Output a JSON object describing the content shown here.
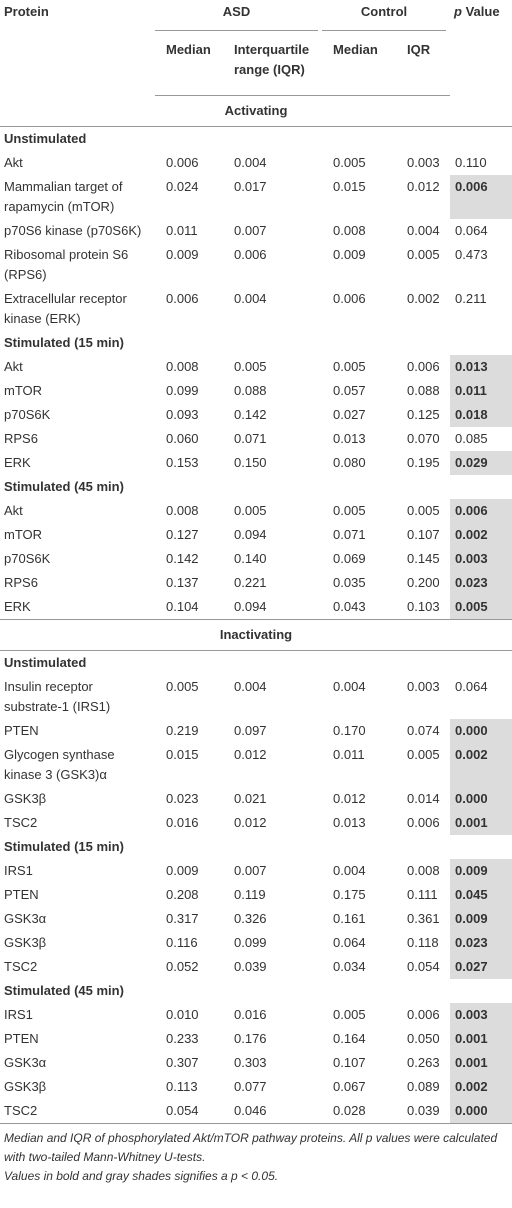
{
  "header": {
    "protein": "Protein",
    "asd": "ASD",
    "control": "Control",
    "p_prefix": "p",
    "p_suffix": "Value",
    "asd_median": "Median",
    "asd_iqr": "Interquartile range (IQR)",
    "control_median": "Median",
    "control_iqr": "IQR"
  },
  "sections": [
    {
      "title": "Activating",
      "groups": [
        {
          "title": "Unstimulated",
          "rows": [
            {
              "cells": [
                "Akt",
                "0.006",
                "0.004",
                "0.005",
                "0.003",
                "0.110"
              ],
              "significant": false
            },
            {
              "cells": [
                "Mammalian target of rapamycin (mTOR)",
                "0.024",
                "0.017",
                "0.015",
                "0.012",
                "0.006"
              ],
              "significant": true
            },
            {
              "cells": [
                "p70S6 kinase (p70S6K)",
                "0.011",
                "0.007",
                "0.008",
                "0.004",
                "0.064"
              ],
              "significant": false
            },
            {
              "cells": [
                "Ribosomal protein S6 (RPS6)",
                "0.009",
                "0.006",
                "0.009",
                "0.005",
                "0.473"
              ],
              "significant": false
            },
            {
              "cells": [
                "Extracellular receptor kinase (ERK)",
                "0.006",
                "0.004",
                "0.006",
                "0.002",
                "0.211"
              ],
              "significant": false
            }
          ]
        },
        {
          "title": "Stimulated (15 min)",
          "rows": [
            {
              "cells": [
                "Akt",
                "0.008",
                "0.005",
                "0.005",
                "0.006",
                "0.013"
              ],
              "significant": true
            },
            {
              "cells": [
                "mTOR",
                "0.099",
                "0.088",
                "0.057",
                "0.088",
                "0.011"
              ],
              "significant": true
            },
            {
              "cells": [
                "p70S6K",
                "0.093",
                "0.142",
                "0.027",
                "0.125",
                "0.018"
              ],
              "significant": true
            },
            {
              "cells": [
                "RPS6",
                "0.060",
                "0.071",
                "0.013",
                "0.070",
                "0.085"
              ],
              "significant": false
            },
            {
              "cells": [
                "ERK",
                "0.153",
                "0.150",
                "0.080",
                "0.195",
                "0.029"
              ],
              "significant": true
            }
          ]
        },
        {
          "title": "Stimulated (45 min)",
          "rows": [
            {
              "cells": [
                "Akt",
                "0.008",
                "0.005",
                "0.005",
                "0.005",
                "0.006"
              ],
              "significant": true
            },
            {
              "cells": [
                "mTOR",
                "0.127",
                "0.094",
                "0.071",
                "0.107",
                "0.002"
              ],
              "significant": true
            },
            {
              "cells": [
                "p70S6K",
                "0.142",
                "0.140",
                "0.069",
                "0.145",
                "0.003"
              ],
              "significant": true
            },
            {
              "cells": [
                "RPS6",
                "0.137",
                "0.221",
                "0.035",
                "0.200",
                "0.023"
              ],
              "significant": true
            },
            {
              "cells": [
                "ERK",
                "0.104",
                "0.094",
                "0.043",
                "0.103",
                "0.005"
              ],
              "significant": true
            }
          ]
        }
      ]
    },
    {
      "title": "Inactivating",
      "groups": [
        {
          "title": "Unstimulated",
          "rows": [
            {
              "cells": [
                "Insulin receptor substrate-1 (IRS1)",
                "0.005",
                "0.004",
                "0.004",
                "0.003",
                "0.064"
              ],
              "significant": false
            },
            {
              "cells": [
                "PTEN",
                "0.219",
                "0.097",
                "0.170",
                "0.074",
                "0.000"
              ],
              "significant": true
            },
            {
              "cells": [
                "Glycogen synthase kinase 3 (GSK3)α",
                "0.015",
                "0.012",
                "0.011",
                "0.005",
                "0.002"
              ],
              "significant": true
            },
            {
              "cells": [
                "GSK3β",
                "0.023",
                "0.021",
                "0.012",
                "0.014",
                "0.000"
              ],
              "significant": true
            },
            {
              "cells": [
                "TSC2",
                "0.016",
                "0.012",
                "0.013",
                "0.006",
                "0.001"
              ],
              "significant": true
            }
          ]
        },
        {
          "title": "Stimulated (15 min)",
          "rows": [
            {
              "cells": [
                "IRS1",
                "0.009",
                "0.007",
                "0.004",
                "0.008",
                "0.009"
              ],
              "significant": true
            },
            {
              "cells": [
                "PTEN",
                "0.208",
                "0.119",
                "0.175",
                "0.111",
                "0.045"
              ],
              "significant": true
            },
            {
              "cells": [
                "GSK3α",
                "0.317",
                "0.326",
                "0.161",
                "0.361",
                "0.009"
              ],
              "significant": true
            },
            {
              "cells": [
                "GSK3β",
                "0.116",
                "0.099",
                "0.064",
                "0.118",
                "0.023"
              ],
              "significant": true
            },
            {
              "cells": [
                "TSC2",
                "0.052",
                "0.039",
                "0.034",
                "0.054",
                "0.027"
              ],
              "significant": true
            }
          ]
        },
        {
          "title": "Stimulated (45 min)",
          "rows": [
            {
              "cells": [
                "IRS1",
                "0.010",
                "0.016",
                "0.005",
                "0.006",
                "0.003"
              ],
              "significant": true
            },
            {
              "cells": [
                "PTEN",
                "0.233",
                "0.176",
                "0.164",
                "0.050",
                "0.001"
              ],
              "significant": true
            },
            {
              "cells": [
                "GSK3α",
                "0.307",
                "0.303",
                "0.107",
                "0.263",
                "0.001"
              ],
              "significant": true
            },
            {
              "cells": [
                "GSK3β",
                "0.113",
                "0.077",
                "0.067",
                "0.089",
                "0.002"
              ],
              "significant": true
            },
            {
              "cells": [
                "TSC2",
                "0.054",
                "0.046",
                "0.028",
                "0.039",
                "0.000"
              ],
              "significant": true
            }
          ]
        }
      ]
    }
  ],
  "footnote": [
    "Median and IQR of phosphorylated Akt/mTOR pathway proteins. All p values were calculated with two-tailed Mann-Whitney U-tests.",
    "Values in bold and gray shades signifies a p < 0.05."
  ]
}
